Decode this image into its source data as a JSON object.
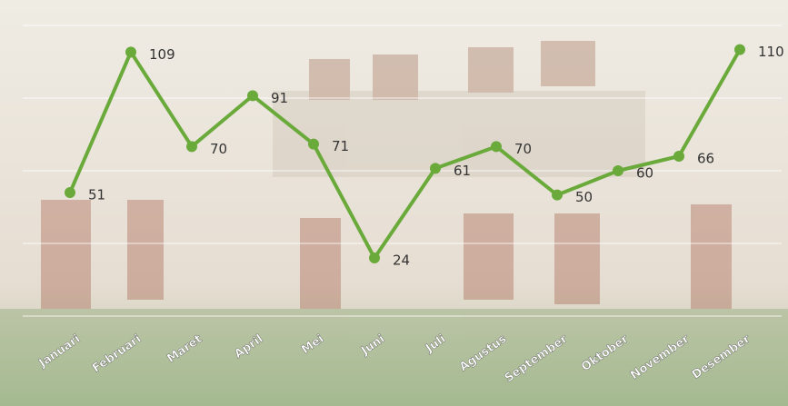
{
  "chart_data": {
    "type": "line",
    "categories": [
      "Januari",
      "Februari",
      "Maret",
      "April",
      "Mei",
      "Juni",
      "Juli",
      "Agustus",
      "September",
      "Oktober",
      "November",
      "Desember"
    ],
    "values": [
      51,
      109,
      70,
      91,
      71,
      24,
      61,
      70,
      50,
      60,
      66,
      110
    ],
    "color": "#6aaa3a",
    "ylim": [
      0,
      120
    ],
    "yticks": [
      0,
      30,
      60,
      90,
      120
    ],
    "grid": true
  }
}
